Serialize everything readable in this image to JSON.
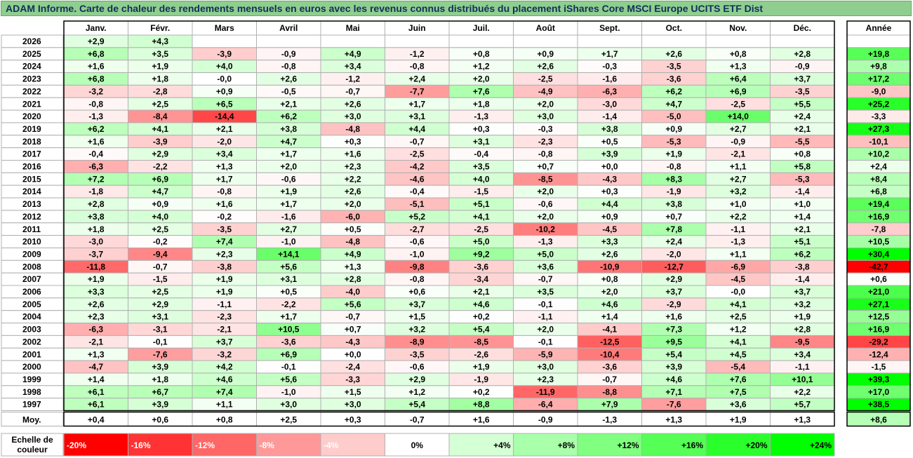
{
  "title": "ADAM Informe. Carte de chaleur des rendements mensuels en euros avec les revenus connus distribués du placement iShares Core MSCI Europe UCITS ETF Dist",
  "year_header": "Année",
  "avg_label": "Moy.",
  "scale_label_line1": "Echelle de",
  "scale_label_line2": "couleur",
  "scale": [
    {
      "label": "-20%",
      "value": -20
    },
    {
      "label": "-16%",
      "value": -16
    },
    {
      "label": "-12%",
      "value": -12
    },
    {
      "label": "-8%",
      "value": -8
    },
    {
      "label": "-4%",
      "value": -4
    },
    {
      "label": "0%",
      "value": 0
    },
    {
      "label": "+4%",
      "value": 4
    },
    {
      "label": "+8%",
      "value": 8
    },
    {
      "label": "+12%",
      "value": 12
    },
    {
      "label": "+16%",
      "value": 16
    },
    {
      "label": "+20%",
      "value": 20
    },
    {
      "label": "+24%",
      "value": 24
    }
  ],
  "chart_data": {
    "type": "heatmap",
    "title": "ADAM Informe. Carte de chaleur des rendements mensuels en euros avec les revenus connus distribués du placement iShares Core MSCI Europe UCITS ETF Dist",
    "months": [
      "Janv.",
      "Févr.",
      "Mars",
      "Avril",
      "Mai",
      "Juin",
      "Juil.",
      "Août",
      "Sept.",
      "Oct.",
      "Nov.",
      "Déc."
    ],
    "rows": [
      {
        "year": "2026",
        "values": [
          "+2,9",
          "+4,3",
          null,
          null,
          null,
          null,
          null,
          null,
          null,
          null,
          null,
          null
        ],
        "annual": null
      },
      {
        "year": "2025",
        "values": [
          "+6,8",
          "+3,5",
          "-3,9",
          "-0,9",
          "+4,9",
          "-1,2",
          "+0,8",
          "+0,9",
          "+1,7",
          "+2,6",
          "+0,8",
          "+2,8"
        ],
        "annual": "+19,8"
      },
      {
        "year": "2024",
        "values": [
          "+1,6",
          "+1,9",
          "+4,0",
          "-0,8",
          "+3,4",
          "-0,8",
          "+1,2",
          "+2,6",
          "-0,3",
          "-3,5",
          "+1,3",
          "-0,9"
        ],
        "annual": "+9,8"
      },
      {
        "year": "2023",
        "values": [
          "+6,8",
          "+1,8",
          "-0,0",
          "+2,6",
          "-1,2",
          "+2,4",
          "+2,0",
          "-2,5",
          "-1,6",
          "-3,6",
          "+6,4",
          "+3,7"
        ],
        "annual": "+17,2"
      },
      {
        "year": "2022",
        "values": [
          "-3,2",
          "-2,8",
          "+0,9",
          "-0,5",
          "-0,7",
          "-7,7",
          "+7,6",
          "-4,9",
          "-6,3",
          "+6,2",
          "+6,9",
          "-3,5"
        ],
        "annual": "-9,0"
      },
      {
        "year": "2021",
        "values": [
          "-0,8",
          "+2,5",
          "+6,5",
          "+2,1",
          "+2,6",
          "+1,7",
          "+1,8",
          "+2,0",
          "-3,0",
          "+4,7",
          "-2,5",
          "+5,5"
        ],
        "annual": "+25,2"
      },
      {
        "year": "2020",
        "values": [
          "-1,3",
          "-8,4",
          "-14,4",
          "+6,2",
          "+3,0",
          "+3,1",
          "-1,3",
          "+3,0",
          "-1,4",
          "-5,0",
          "+14,0",
          "+2,4"
        ],
        "annual": "-3,3"
      },
      {
        "year": "2019",
        "values": [
          "+6,2",
          "+4,1",
          "+2,1",
          "+3,8",
          "-4,8",
          "+4,4",
          "+0,3",
          "-0,3",
          "+3,8",
          "+0,9",
          "+2,7",
          "+2,1"
        ],
        "annual": "+27,3"
      },
      {
        "year": "2018",
        "values": [
          "+1,6",
          "-3,9",
          "-2,0",
          "+4,7",
          "+0,3",
          "-0,7",
          "+3,1",
          "-2,3",
          "+0,5",
          "-5,3",
          "-0,9",
          "-5,5"
        ],
        "annual": "-10,1"
      },
      {
        "year": "2017",
        "values": [
          "-0,4",
          "+2,9",
          "+3,4",
          "+1,7",
          "+1,6",
          "-2,5",
          "-0,4",
          "-0,8",
          "+3,9",
          "+1,9",
          "-2,1",
          "+0,8"
        ],
        "annual": "+10,2"
      },
      {
        "year": "2016",
        "values": [
          "-6,3",
          "-2,2",
          "+1,3",
          "+2,0",
          "+2,3",
          "-4,2",
          "+3,5",
          "+0,7",
          "+0,0",
          "-0,8",
          "+1,1",
          "+5,8"
        ],
        "annual": "+2,4"
      },
      {
        "year": "2015",
        "values": [
          "+7,2",
          "+6,9",
          "+1,7",
          "-0,6",
          "+2,2",
          "-4,6",
          "+4,0",
          "-8,5",
          "-4,3",
          "+8,3",
          "+2,7",
          "-5,3"
        ],
        "annual": "+8,4"
      },
      {
        "year": "2014",
        "values": [
          "-1,8",
          "+4,7",
          "-0,8",
          "+1,9",
          "+2,6",
          "-0,4",
          "-1,5",
          "+2,0",
          "+0,3",
          "-1,9",
          "+3,2",
          "-1,4"
        ],
        "annual": "+6,8"
      },
      {
        "year": "2013",
        "values": [
          "+2,8",
          "+0,9",
          "+1,6",
          "+1,7",
          "+2,0",
          "-5,1",
          "+5,1",
          "-0,6",
          "+4,4",
          "+3,8",
          "+1,0",
          "+1,0"
        ],
        "annual": "+19,4"
      },
      {
        "year": "2012",
        "values": [
          "+3,8",
          "+4,0",
          "-0,2",
          "-1,6",
          "-6,0",
          "+5,2",
          "+4,1",
          "+2,0",
          "+0,9",
          "+0,7",
          "+2,2",
          "+1,4"
        ],
        "annual": "+16,9"
      },
      {
        "year": "2011",
        "values": [
          "+1,8",
          "+2,5",
          "-3,5",
          "+2,7",
          "+0,5",
          "-2,7",
          "-2,5",
          "-10,2",
          "-4,5",
          "+7,8",
          "-1,1",
          "+2,1"
        ],
        "annual": "-7,8"
      },
      {
        "year": "2010",
        "values": [
          "-3,0",
          "-0,2",
          "+7,4",
          "-1,0",
          "-4,8",
          "-0,6",
          "+5,0",
          "-1,3",
          "+3,3",
          "+2,4",
          "-1,3",
          "+5,1"
        ],
        "annual": "+10,5"
      },
      {
        "year": "2009",
        "values": [
          "-3,7",
          "-9,4",
          "+2,3",
          "+14,1",
          "+4,9",
          "-1,0",
          "+9,2",
          "+5,0",
          "+2,6",
          "-2,0",
          "+1,1",
          "+6,2"
        ],
        "annual": "+30,4"
      },
      {
        "year": "2008",
        "values": [
          "-11,8",
          "-0,7",
          "-3,8",
          "+5,6",
          "+1,3",
          "-9,8",
          "-3,6",
          "+3,6",
          "-10,9",
          "-12,7",
          "-6,9",
          "-3,8"
        ],
        "annual": "-42,7"
      },
      {
        "year": "2007",
        "values": [
          "+1,9",
          "-1,5",
          "+1,9",
          "+3,1",
          "+2,8",
          "-0,8",
          "-3,4",
          "-0,7",
          "+0,8",
          "+2,9",
          "-4,5",
          "-1,4"
        ],
        "annual": "+0,6"
      },
      {
        "year": "2006",
        "values": [
          "+3,3",
          "+2,5",
          "+1,9",
          "+0,5",
          "-4,0",
          "+0,6",
          "+2,1",
          "+3,5",
          "+2,0",
          "+3,7",
          "-0,0",
          "+3,7"
        ],
        "annual": "+21,0"
      },
      {
        "year": "2005",
        "values": [
          "+2,6",
          "+2,9",
          "-1,1",
          "-2,2",
          "+5,6",
          "+3,7",
          "+4,6",
          "-0,1",
          "+4,6",
          "-2,9",
          "+4,1",
          "+3,2"
        ],
        "annual": "+27,1"
      },
      {
        "year": "2004",
        "values": [
          "+2,3",
          "+3,1",
          "-2,3",
          "+1,7",
          "-0,7",
          "+1,5",
          "+0,2",
          "-1,1",
          "+1,4",
          "+1,6",
          "+2,5",
          "+1,9"
        ],
        "annual": "+12,5"
      },
      {
        "year": "2003",
        "values": [
          "-6,3",
          "-3,1",
          "-2,1",
          "+10,5",
          "+0,7",
          "+3,2",
          "+5,4",
          "+2,0",
          "-4,1",
          "+7,3",
          "+1,2",
          "+2,8"
        ],
        "annual": "+16,9"
      },
      {
        "year": "2002",
        "values": [
          "-2,1",
          "-0,1",
          "+3,7",
          "-3,6",
          "-4,3",
          "-8,9",
          "-8,5",
          "-0,1",
          "-12,5",
          "+9,5",
          "+4,1",
          "-9,5"
        ],
        "annual": "-29,2"
      },
      {
        "year": "2001",
        "values": [
          "+1,3",
          "-7,6",
          "-3,2",
          "+6,9",
          "+0,0",
          "-3,5",
          "-2,6",
          "-5,9",
          "-10,4",
          "+5,4",
          "+4,5",
          "+3,4"
        ],
        "annual": "-12,4"
      },
      {
        "year": "2000",
        "values": [
          "-4,7",
          "+3,9",
          "+4,2",
          "-0,1",
          "-2,4",
          "-0,6",
          "+1,9",
          "+3,0",
          "-3,6",
          "+3,9",
          "-5,4",
          "-1,1"
        ],
        "annual": "-1,5"
      },
      {
        "year": "1999",
        "values": [
          "+1,4",
          "+1,8",
          "+4,6",
          "+5,6",
          "-3,3",
          "+2,9",
          "-1,9",
          "+2,3",
          "-0,7",
          "+4,6",
          "+7,6",
          "+10,1"
        ],
        "annual": "+39,3"
      },
      {
        "year": "1998",
        "values": [
          "+6,1",
          "+6,7",
          "+7,4",
          "-1,0",
          "+1,5",
          "+1,2",
          "+0,2",
          "-11,9",
          "-8,8",
          "+7,1",
          "+7,5",
          "+2,2"
        ],
        "annual": "+17,0"
      },
      {
        "year": "1997",
        "values": [
          "+6,1",
          "+3,9",
          "+1,1",
          "+3,0",
          "+3,0",
          "+5,4",
          "+8,8",
          "-6,4",
          "+7,9",
          "-7,6",
          "+3,6",
          "+5,7"
        ],
        "annual": "+38,5"
      }
    ],
    "averages": [
      "+0,4",
      "+0,6",
      "+0,8",
      "+2,5",
      "+0,3",
      "-0,7",
      "+1,6",
      "-0,9",
      "-1,3",
      "+1,3",
      "+1,9",
      "+1,3"
    ],
    "average_annual": "+8,6"
  }
}
